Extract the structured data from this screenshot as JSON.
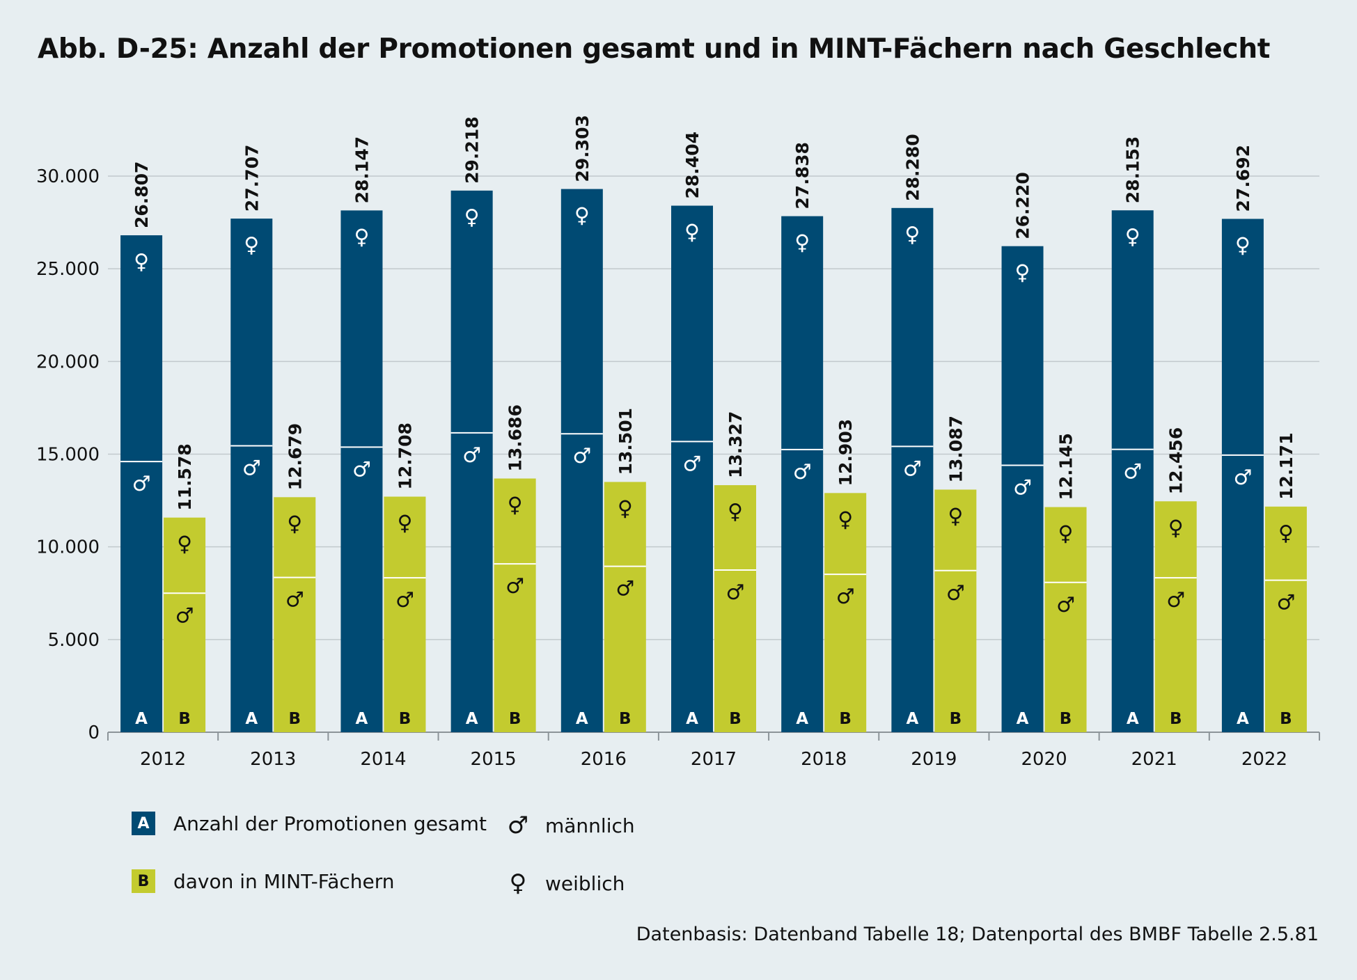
{
  "title": "Abb. D-25: Anzahl der Promotionen gesamt und in MINT-Fächern nach Geschlecht",
  "source": "Datenbasis: Datenband Tabelle 18; Datenportal des BMBF Tabelle 2.5.81",
  "legend": {
    "a_key": "A",
    "a_label": "Anzahl der Promotionen gesamt",
    "b_key": "B",
    "b_label": "davon in MINT-Fächern",
    "male_symbol": "♂",
    "male_label": "männlich",
    "female_symbol": "♀",
    "female_label": "weiblich"
  },
  "colors": {
    "gesamt": "#004a73",
    "mint": "#c3cb2f",
    "background": "#e7eef1"
  },
  "chart_data": {
    "type": "bar",
    "stacked": true,
    "title": "Abb. D-25: Anzahl der Promotionen gesamt und in MINT-Fächern nach Geschlecht",
    "xlabel": "",
    "ylabel": "",
    "ylim": [
      0,
      30000
    ],
    "yticks": [
      0,
      5000,
      10000,
      15000,
      20000,
      25000,
      30000
    ],
    "ytick_labels": [
      "0",
      "5.000",
      "10.000",
      "15.000",
      "20.000",
      "25.000",
      "30.000"
    ],
    "grid": true,
    "categories": [
      "2012",
      "2013",
      "2014",
      "2015",
      "2016",
      "2017",
      "2018",
      "2019",
      "2020",
      "2021",
      "2022"
    ],
    "series": [
      {
        "name": "Anzahl der Promotionen gesamt",
        "key": "A",
        "total_labels": [
          "26.807",
          "27.707",
          "28.147",
          "29.218",
          "29.303",
          "28.404",
          "27.838",
          "28.280",
          "26.220",
          "28.153",
          "27.692"
        ],
        "total": [
          26807,
          27707,
          28147,
          29218,
          29303,
          28404,
          27838,
          28280,
          26220,
          28153,
          27692
        ],
        "male": [
          14600,
          15450,
          15380,
          16150,
          16100,
          15680,
          15250,
          15420,
          14400,
          15260,
          14950
        ]
      },
      {
        "name": "davon in MINT-Fächern",
        "key": "B",
        "total_labels": [
          "11.578",
          "12.679",
          "12.708",
          "13.686",
          "13.501",
          "13.327",
          "12.903",
          "13.087",
          "12.145",
          "12.456",
          "12.171"
        ],
        "total": [
          11578,
          12679,
          12708,
          13686,
          13501,
          13327,
          12903,
          13087,
          12145,
          12456,
          12171
        ],
        "male": [
          7500,
          8350,
          8330,
          9080,
          8950,
          8750,
          8520,
          8720,
          8080,
          8330,
          8200
        ]
      }
    ],
    "segment_symbols": {
      "male": "♂",
      "female": "♀"
    }
  }
}
